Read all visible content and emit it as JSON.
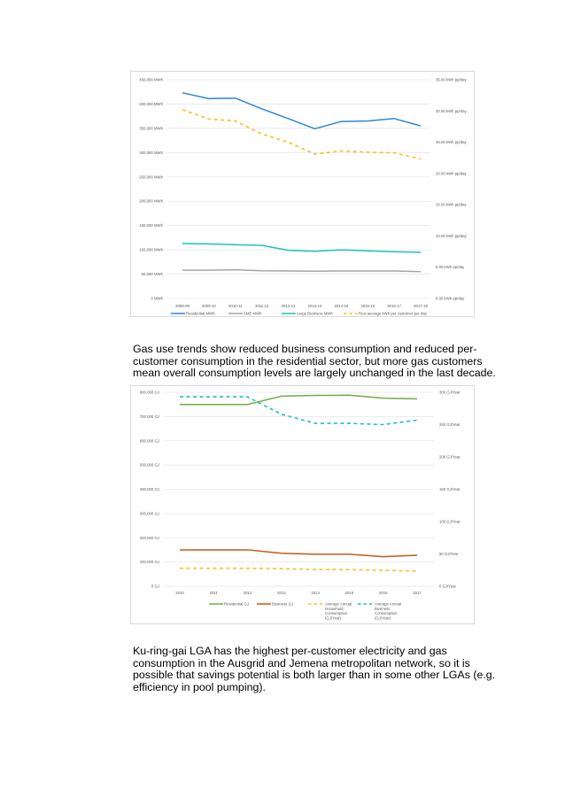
{
  "paragraphs": {
    "gas_intro": [
      "Gas use trends show reduced business consumption and reduced per-",
      "customer consumption in the residential sector, but more gas customers",
      "mean overall consumption levels are largely unchanged in the last decade."
    ],
    "conclusion": [
      "Ku-ring-gai LGA has the highest per-customer electricity and gas",
      "consumption in the Ausgrid and Jemena metropolitan network, so it is",
      "possible that savings potential is both larger than in some other LGAs (e.g.",
      "efficiency in pool pumping)."
    ]
  },
  "chart_data": [
    {
      "type": "line",
      "title": "",
      "categories": [
        "2008-09",
        "2009-10",
        "2010-11",
        "2011-12",
        "2012-13",
        "2013-14",
        "2014-15",
        "2015-16",
        "2016-17",
        "2017-18"
      ],
      "ylim": [
        0,
        450000
      ],
      "y_ticks": [
        "0 MWh",
        "50,000 MWh",
        "100,000 MWh",
        "150,000 MWh",
        "200,000 MWh",
        "250,000 MWh",
        "300,000 MWh",
        "350,000 MWh",
        "400,000 MWh",
        "450,000 MWh"
      ],
      "y2lim": [
        0,
        35
      ],
      "y2_ticks": [
        "0.00 kWh pp/day",
        "5.00 kWh pp/day",
        "10.00 kWh pp/day",
        "15.00 kWh pp/day",
        "20.00 kWh pp/day",
        "25.00 kWh pp/day",
        "30.00 kWh pp/day",
        "35.00 kWh pp/day"
      ],
      "grid": true,
      "legend_position": "bottom",
      "series": [
        {
          "name": "Residential MWh",
          "axis": "left",
          "dashed": false,
          "color": "#2e86d4",
          "values": [
            423000,
            411000,
            412000,
            390000,
            370000,
            349000,
            364000,
            365000,
            370000,
            355000
          ]
        },
        {
          "name": "SME MWh",
          "axis": "left",
          "dashed": false,
          "color": "#a5a5a5",
          "values": [
            58000,
            58000,
            59000,
            57000,
            56500,
            56000,
            56500,
            56500,
            56500,
            55000
          ]
        },
        {
          "name": "Large Business MWh",
          "axis": "left",
          "dashed": false,
          "color": "#1fbfc2",
          "values": [
            113000,
            112000,
            110500,
            109000,
            99000,
            97000,
            100000,
            98000,
            96000,
            95000
          ]
        },
        {
          "name": "Resi average kWh per customer per day",
          "axis": "right",
          "dashed": true,
          "color": "#fbbf2f",
          "values": [
            30.2,
            28.7,
            28.4,
            26.3,
            25.0,
            23.1,
            23.6,
            23.4,
            23.3,
            22.3
          ]
        }
      ]
    },
    {
      "type": "line",
      "title": "",
      "categories": [
        "2010",
        "2011",
        "2012",
        "2013",
        "2014",
        "2015",
        "2016",
        "2017"
      ],
      "ylim": [
        0,
        800000
      ],
      "y_ticks": [
        "0 GJ",
        "100,000 GJ",
        "200,000 GJ",
        "300,000 GJ",
        "400,000 GJ",
        "500,000 GJ",
        "600,000 GJ",
        "700,000 GJ",
        "800,000 GJ"
      ],
      "y2lim": [
        0,
        300
      ],
      "y2_ticks": [
        "0 GJ/Year",
        "50 GJ/Year",
        "100 GJ/Year",
        "150 GJ/Year",
        "200 GJ/Year",
        "250 GJ/Year",
        "300 GJ/Year"
      ],
      "grid": true,
      "legend_position": "bottom",
      "series": [
        {
          "name": "Residential GJ",
          "axis": "left",
          "dashed": false,
          "color": "#70ad47",
          "values": [
            750000,
            750000,
            750000,
            784000,
            787000,
            788000,
            776000,
            773000
          ]
        },
        {
          "name": "Business GJ",
          "axis": "left",
          "dashed": false,
          "color": "#c55a11",
          "values": [
            150000,
            150000,
            150000,
            136000,
            132000,
            132000,
            122000,
            128000
          ]
        },
        {
          "name": "Average Annual Household Consumption (GJ/Year)",
          "axis": "right",
          "dashed": true,
          "color": "#fbbf2f",
          "values": [
            27.8,
            27.8,
            27.8,
            27.2,
            26.0,
            25.8,
            24.7,
            23.4
          ]
        },
        {
          "name": "Average Annual Business Consumption (GJ/Year)",
          "axis": "right",
          "dashed": true,
          "color": "#1fbfc2",
          "values": [
            293,
            293,
            293,
            266,
            252,
            252,
            250,
            257
          ]
        }
      ]
    }
  ]
}
